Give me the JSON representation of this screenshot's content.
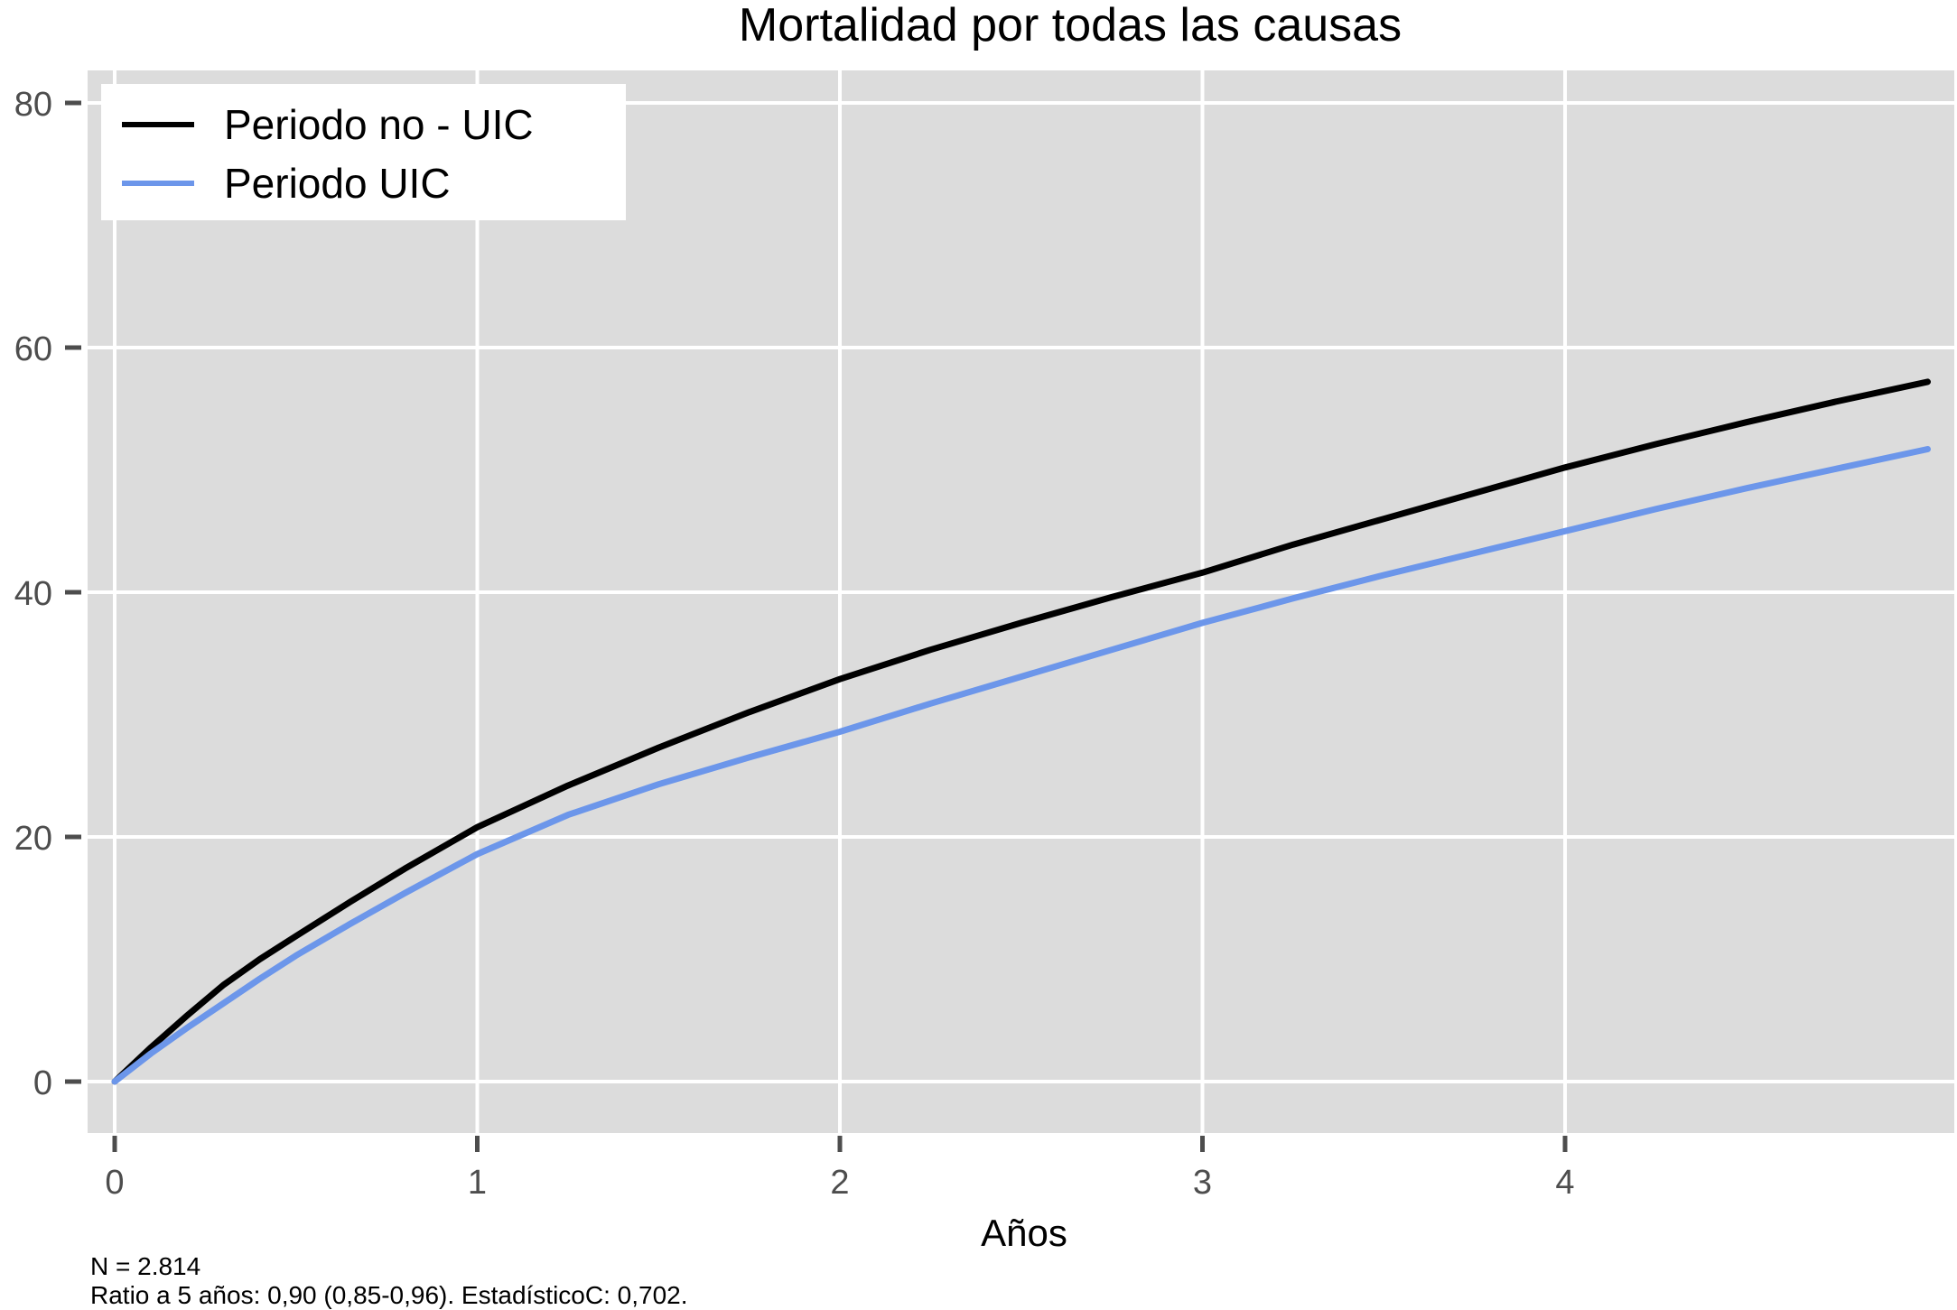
{
  "title": "Mortalidad por todas las causas",
  "chart_data": {
    "type": "line",
    "title": "Mortalidad por todas las causas",
    "xlabel": "Años",
    "ylabel": "",
    "x_ticks": [
      0,
      1,
      2,
      3,
      4
    ],
    "y_ticks": [
      0,
      20,
      40,
      60,
      80
    ],
    "xlim": [
      0,
      5
    ],
    "ylim": [
      0,
      80
    ],
    "grid": true,
    "legend_position": "top-left",
    "colors": {
      "panel_background": "#DCDCDC",
      "gridline": "#FFFFFF",
      "tick": "#4D4D4D",
      "series_no_uic": "#000000",
      "series_uic": "#6C96EA",
      "legend_background": "#FFFFFF"
    },
    "series": [
      {
        "name": "Periodo no - UIC",
        "color": "#000000",
        "x": [
          0,
          0.1,
          0.2,
          0.3,
          0.4,
          0.5,
          0.65,
          0.8,
          1,
          1.25,
          1.5,
          1.75,
          2,
          2.25,
          2.5,
          2.75,
          3,
          3.25,
          3.5,
          3.75,
          4,
          4.25,
          4.5,
          4.75,
          5
        ],
        "values": [
          0,
          2.8,
          5.4,
          7.9,
          10.0,
          11.9,
          14.7,
          17.4,
          20.8,
          24.2,
          27.3,
          30.2,
          32.9,
          35.3,
          37.5,
          39.6,
          41.6,
          43.9,
          46.0,
          48.1,
          50.2,
          52.1,
          53.9,
          55.6,
          57.2
        ]
      },
      {
        "name": "Periodo UIC",
        "color": "#6C96EA",
        "x": [
          0,
          0.1,
          0.2,
          0.3,
          0.4,
          0.5,
          0.65,
          0.8,
          1,
          1.25,
          1.5,
          1.75,
          2,
          2.25,
          2.5,
          2.75,
          3,
          3.25,
          3.5,
          3.75,
          4,
          4.25,
          4.5,
          4.75,
          5
        ],
        "values": [
          0,
          2.3,
          4.4,
          6.4,
          8.4,
          10.3,
          12.9,
          15.4,
          18.6,
          21.8,
          24.3,
          26.5,
          28.6,
          30.9,
          33.1,
          35.3,
          37.5,
          39.5,
          41.4,
          43.2,
          45.0,
          46.8,
          48.5,
          50.1,
          51.7
        ]
      }
    ],
    "notes": [
      "N = 2.814",
      "Ratio a 5 años: 0,90 (0,85-0,96). EstadísticoC: 0,702."
    ]
  }
}
